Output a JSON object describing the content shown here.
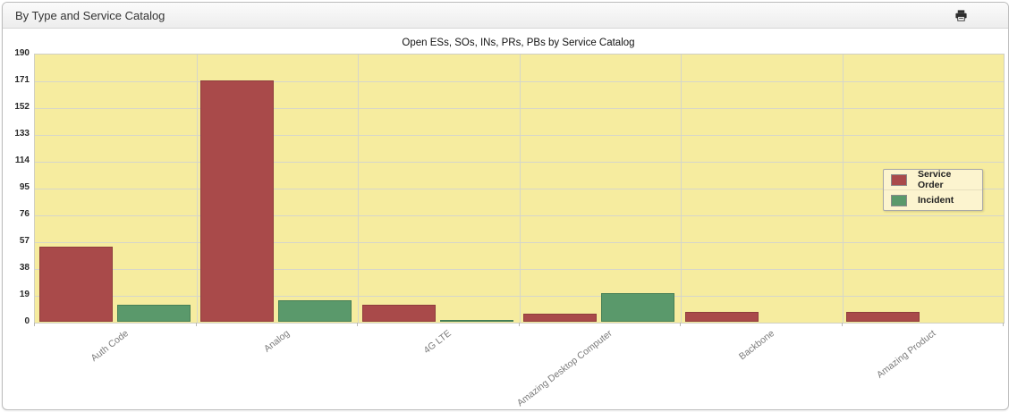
{
  "panel": {
    "title": "By Type and Service Catalog",
    "print_icon": "printer-icon"
  },
  "chart_data": {
    "type": "bar",
    "title": "Open ESs, SOs, INs, PRs, PBs by Service Catalog",
    "categories": [
      "Auth Code",
      "Analog",
      "4G LTE",
      "Amazing Desktop Computer",
      "Backbone",
      "Amazing Product"
    ],
    "series": [
      {
        "name": "Service Order",
        "color": "#A94A4A",
        "border_color": "#8E3D3D",
        "values": [
          53,
          171,
          12,
          6,
          7,
          7
        ]
      },
      {
        "name": "Incident",
        "color": "#5A996B",
        "border_color": "#467F56",
        "values": [
          12,
          15,
          1,
          20,
          0,
          0
        ]
      }
    ],
    "xlabel": "",
    "ylabel": "",
    "ylim": [
      0,
      190
    ],
    "yticks": [
      0,
      19,
      38,
      57,
      76,
      95,
      114,
      133,
      152,
      171,
      190
    ],
    "grid": true,
    "legend_position": "inside-right",
    "plot_bg": "#F6EC9F",
    "grid_color": "#D6D6CA",
    "axis_label_color": "#2b2b2b",
    "category_label_color": "#7b7b7b"
  }
}
